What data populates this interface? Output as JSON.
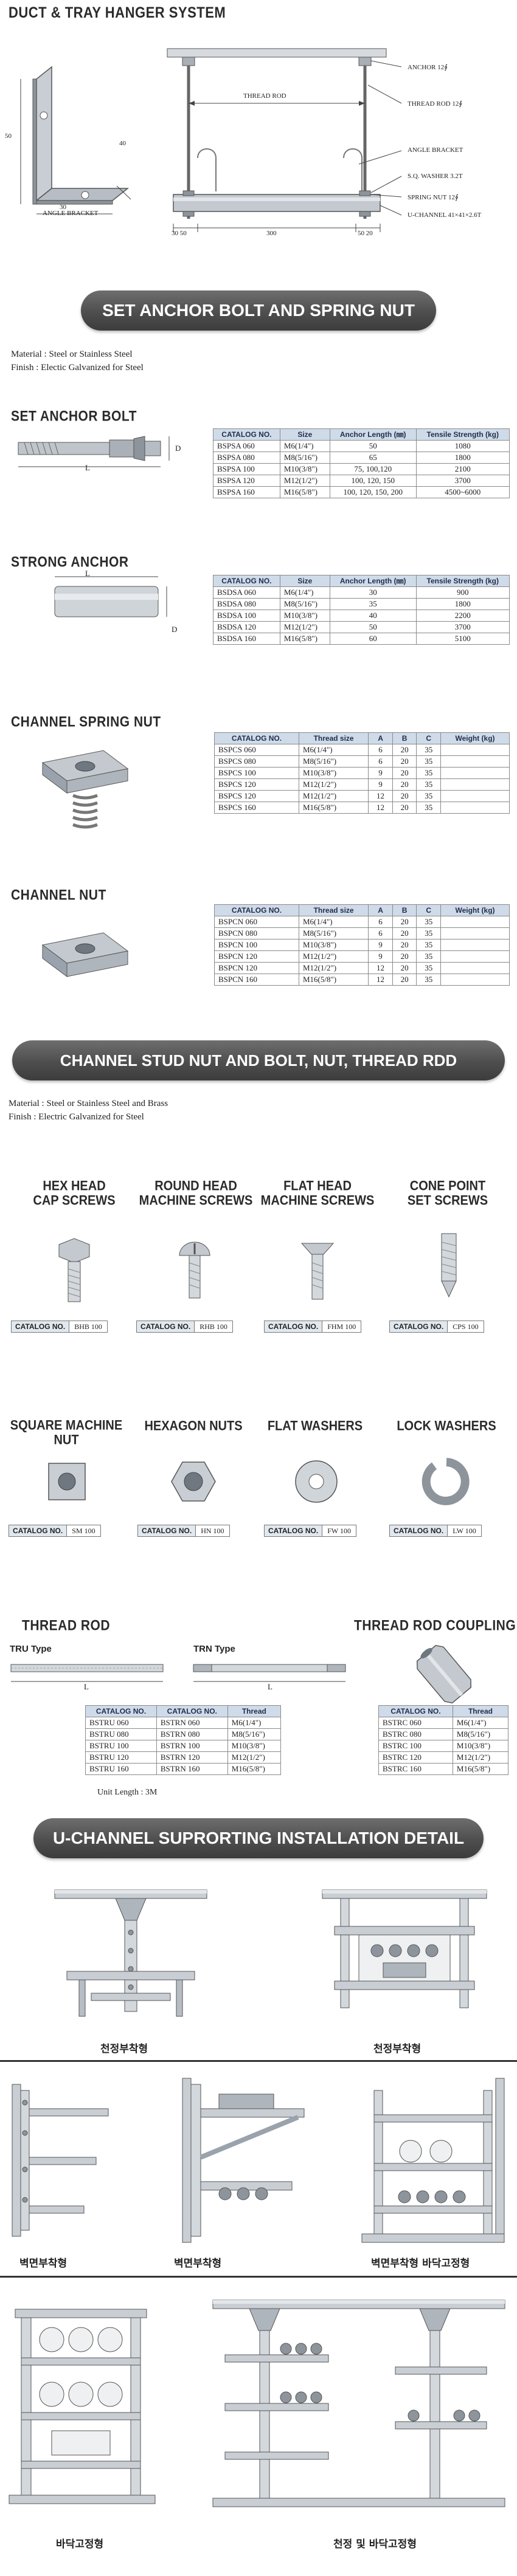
{
  "header": {
    "title": "DUCT & TRAY HANGER SYSTEM",
    "labels": {
      "anchor": "ANCHOR 12∮",
      "thread_rod_top": "THREAD ROD 12∮",
      "angle_bracket_right": "ANGLE BRACKET",
      "sq_washer": "S.Q. WASHER 3.2T",
      "spring_nut": "SPRING NUT 12∮",
      "u_channel": "U-CHANNEL 41×41×2.6T",
      "thread_rod_mid": "THREAD ROD",
      "angle_bracket_left": "ANGLE BRACKET",
      "dim_50": "50",
      "dim_40": "40",
      "dim_30": "30",
      "dim_300": "300",
      "dim_30_50": "30  50",
      "dim_50_20": "50  20"
    }
  },
  "banners": {
    "anchor_spring": "SET ANCHOR BOLT AND SPRING NUT",
    "stud_nut": "CHANNEL STUD NUT AND BOLT, NUT, THREAD RDD",
    "u_channel": "U-CHANNEL SUPRORTING INSTALLATION DETAIL"
  },
  "material1": {
    "material": "Material : Steel or Stainless Steel",
    "finish": "Finish : Electic Galvanized for Steel"
  },
  "material2": {
    "material": "Material : Steel or Stainless Steel and Brass",
    "finish": "Finish : Electric Galvanized for Steel"
  },
  "set_anchor": {
    "title": "SET ANCHOR BOLT",
    "dim_l": "L",
    "dim_d": "D",
    "headers": [
      "CATALOG NO.",
      "Size",
      "Anchor Length (㎜)",
      "Tensile Strength (kg)"
    ],
    "rows": [
      [
        "BSPSA 060",
        "M6(1/4\")",
        "50",
        "1080"
      ],
      [
        "BSPSA 080",
        "M8(5/16\")",
        "65",
        "1800"
      ],
      [
        "BSPSA 100",
        "M10(3/8\")",
        "75, 100,120",
        "2100"
      ],
      [
        "BSPSA 120",
        "M12(1/2\")",
        "100, 120, 150",
        "3700"
      ],
      [
        "BSPSA 160",
        "M16(5/8\")",
        "100, 120, 150, 200",
        "4500~6000"
      ]
    ]
  },
  "strong_anchor": {
    "title": "STRONG ANCHOR",
    "dim_l": "L",
    "dim_d": "D",
    "headers": [
      "CATALOG NO.",
      "Size",
      "Anchor Length (㎜)",
      "Tensile Strength (kg)"
    ],
    "rows": [
      [
        "BSDSA 060",
        "M6(1/4\")",
        "30",
        "900"
      ],
      [
        "BSDSA 080",
        "M8(5/16\")",
        "35",
        "1800"
      ],
      [
        "BSDSA 100",
        "M10(3/8\")",
        "40",
        "2200"
      ],
      [
        "BSDSA 120",
        "M12(1/2\")",
        "50",
        "3700"
      ],
      [
        "BSDSA 160",
        "M16(5/8\")",
        "60",
        "5100"
      ]
    ]
  },
  "channel_spring_nut": {
    "title": "CHANNEL SPRING NUT",
    "headers": [
      "CATALOG NO.",
      "Thread size",
      "A",
      "B",
      "C",
      "Weight (kg)"
    ],
    "rows": [
      [
        "BSPCS 060",
        "M6(1/4\")",
        "6",
        "20",
        "35",
        ""
      ],
      [
        "BSPCS 080",
        "M8(5/16\")",
        "6",
        "20",
        "35",
        ""
      ],
      [
        "BSPCS 100",
        "M10(3/8\")",
        "9",
        "20",
        "35",
        ""
      ],
      [
        "BSPCS 120",
        "M12(1/2\")",
        "9",
        "20",
        "35",
        ""
      ],
      [
        "BSPCS 120",
        "M12(1/2\")",
        "12",
        "20",
        "35",
        ""
      ],
      [
        "BSPCS 160",
        "M16(5/8\")",
        "12",
        "20",
        "35",
        ""
      ]
    ]
  },
  "channel_nut": {
    "title": "CHANNEL NUT",
    "headers": [
      "CATALOG NO.",
      "Thread size",
      "A",
      "B",
      "C",
      "Weight (kg)"
    ],
    "rows": [
      [
        "BSPCN 060",
        "M6(1/4\")",
        "6",
        "20",
        "35",
        ""
      ],
      [
        "BSPCN 080",
        "M8(5/16\")",
        "6",
        "20",
        "35",
        ""
      ],
      [
        "BSPCN 100",
        "M10(3/8\")",
        "9",
        "20",
        "35",
        ""
      ],
      [
        "BSPCN 120",
        "M12(1/2\")",
        "9",
        "20",
        "35",
        ""
      ],
      [
        "BSPCN 120",
        "M12(1/2\")",
        "12",
        "20",
        "35",
        ""
      ],
      [
        "BSPCN 160",
        "M16(5/8\")",
        "12",
        "20",
        "35",
        ""
      ]
    ]
  },
  "screws": [
    {
      "line1": "HEX HEAD",
      "line2": "CAP SCREWS",
      "cat_label": "CATALOG NO.",
      "cat": "BHB 100"
    },
    {
      "line1": "ROUND HEAD",
      "line2": "MACHINE SCREWS",
      "cat_label": "CATALOG NO.",
      "cat": "RHB 100"
    },
    {
      "line1": "FLAT HEAD",
      "line2": "MACHINE SCREWS",
      "cat_label": "CATALOG NO.",
      "cat": "FHM 100"
    },
    {
      "line1": "CONE POINT",
      "line2": "SET SCREWS",
      "cat_label": "CATALOG NO.",
      "cat": "CPS 100"
    }
  ],
  "nuts": [
    {
      "line1": "SQUARE MACHINE NUT",
      "cat_label": "CATALOG NO.",
      "cat": "SM 100"
    },
    {
      "line1": "HEXAGON NUTS",
      "cat_label": "CATALOG NO.",
      "cat": "HN 100"
    },
    {
      "line1": "FLAT WASHERS",
      "cat_label": "CATALOG NO.",
      "cat": "FW 100"
    },
    {
      "line1": "LOCK WASHERS",
      "cat_label": "CATALOG NO.",
      "cat": "LW 100"
    }
  ],
  "thread_rod": {
    "title": "THREAD ROD",
    "tru_type": "TRU Type",
    "trn_type": "TRN Type",
    "dim_l": "L",
    "headers": [
      "CATALOG NO.",
      "CATALOG NO.",
      "Thread"
    ],
    "rows": [
      [
        "BSTRU 060",
        "BSTRN 060",
        "M6(1/4\")"
      ],
      [
        "BSTRU 080",
        "BSTRN 080",
        "M8(5/16\")"
      ],
      [
        "BSTRU 100",
        "BSTRN 100",
        "M10(3/8\")"
      ],
      [
        "BSTRU 120",
        "BSTRN 120",
        "M12(1/2\")"
      ],
      [
        "BSTRU 160",
        "BSTRN 160",
        "M16(5/8\")"
      ]
    ],
    "unit": "Unit Length : 3M"
  },
  "thread_coupling": {
    "title": "THREAD ROD COUPLING",
    "headers": [
      "CATALOG NO.",
      "Thread"
    ],
    "rows": [
      [
        "BSTRC 060",
        "M6(1/4\")"
      ],
      [
        "BSTRC 080",
        "M8(5/16\")"
      ],
      [
        "BSTRC 100",
        "M10(3/8\")"
      ],
      [
        "BSTRC 120",
        "M12(1/2\")"
      ],
      [
        "BSTRC 160",
        "M16(5/8\")"
      ]
    ]
  },
  "install": {
    "ceiling1": "천정부착형",
    "ceiling2": "천정부착형",
    "wall1": "벽면부착형",
    "wall2": "벽면부착형",
    "wall_floor": "벽면부착형  바닥고정형",
    "floor": "바닥고정형",
    "ceiling_floor": "천정 및 바닥고정형"
  },
  "colors": {
    "banner": "#555555",
    "table_header": "#cfdbe9",
    "steel": "#9aa3ad"
  }
}
